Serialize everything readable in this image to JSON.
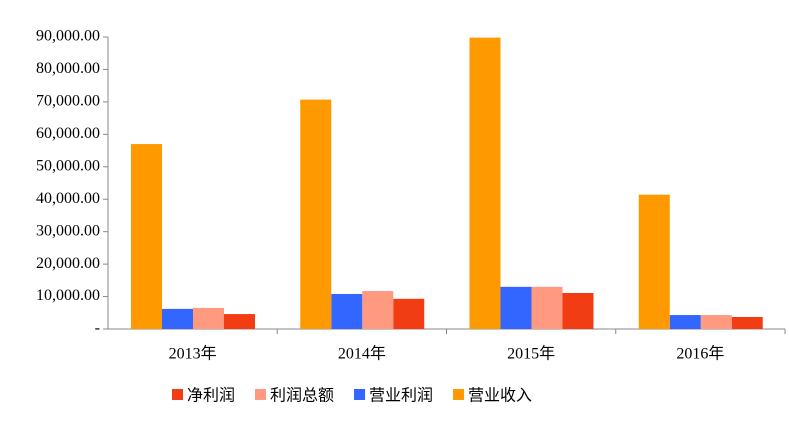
{
  "chart_data": {
    "type": "bar",
    "categories": [
      "2013年",
      "2014年",
      "2015年",
      "2016年"
    ],
    "series": [
      {
        "name": "净利润",
        "color": "#f23c14",
        "values": [
          4600,
          9300,
          11100,
          3700
        ]
      },
      {
        "name": "利润总额",
        "color": "#ff9980",
        "values": [
          6500,
          11700,
          13000,
          4300
        ]
      },
      {
        "name": "营业利润",
        "color": "#3366ff",
        "values": [
          6200,
          10800,
          13000,
          4300
        ]
      },
      {
        "name": "营业收入",
        "color": "#ff9900",
        "values": [
          57000,
          70700,
          89800,
          41400
        ]
      }
    ],
    "ylim": [
      0,
      90000
    ],
    "yticks": [
      {
        "value": 0,
        "label": "-"
      },
      {
        "value": 10000,
        "label": "10,000.00"
      },
      {
        "value": 20000,
        "label": "20,000.00"
      },
      {
        "value": 30000,
        "label": "30,000.00"
      },
      {
        "value": 40000,
        "label": "40,000.00"
      },
      {
        "value": 50000,
        "label": "50,000.00"
      },
      {
        "value": 60000,
        "label": "60,000.00"
      },
      {
        "value": 70000,
        "label": "70,000.00"
      },
      {
        "value": 80000,
        "label": "80,000.00"
      },
      {
        "value": 90000,
        "label": "90,000.00"
      }
    ],
    "grid": false,
    "legend": "bottom"
  }
}
